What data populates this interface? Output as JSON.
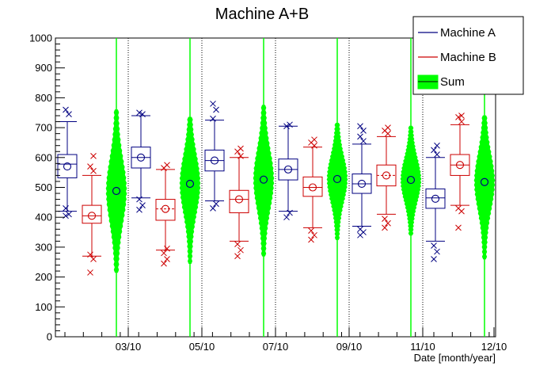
{
  "chart_data": {
    "type": "box",
    "title": "Machine A+B",
    "xlabel": "Date [month/year]",
    "ylabel": "",
    "ylim": [
      0,
      1000
    ],
    "y_ticks": [
      0,
      100,
      200,
      300,
      400,
      500,
      600,
      700,
      800,
      900,
      1000
    ],
    "x_ticks": [
      "03/10",
      "05/10",
      "07/10",
      "09/10",
      "11/10",
      "12/10"
    ],
    "legend": {
      "position": "top-right",
      "entries": [
        {
          "name": "Machine A",
          "color": "#000080",
          "style": "line"
        },
        {
          "name": "Machine B",
          "color": "#cc0000",
          "style": "line"
        },
        {
          "name": "Sum",
          "color": "#00ff00",
          "style": "fill"
        }
      ]
    },
    "colors": {
      "machine_a": "#000080",
      "machine_b": "#cc0000",
      "sum": "#00ff00"
    },
    "periods": [
      {
        "machine_a": {
          "q1": 532,
          "median": 578,
          "q3": 610,
          "mean": 570,
          "whisker_low": 420,
          "whisker_high": 720,
          "outliers": [
            405,
            410,
            430,
            745,
            760
          ]
        },
        "machine_b": {
          "q1": 380,
          "median": 405,
          "q3": 440,
          "mean": 405,
          "whisker_low": 270,
          "whisker_high": 540,
          "outliers": [
            215,
            260,
            275,
            555,
            570,
            605
          ]
        },
        "sum": {
          "mean": 488,
          "low": 215,
          "high": 760
        }
      },
      {
        "machine_a": {
          "q1": 565,
          "median": 600,
          "q3": 635,
          "mean": 600,
          "whisker_low": 465,
          "whisker_high": 740,
          "outliers": [
            425,
            440,
            460,
            745,
            750
          ]
        },
        "machine_b": {
          "q1": 390,
          "median": 428,
          "q3": 460,
          "mean": 428,
          "whisker_low": 290,
          "whisker_high": 560,
          "outliers": [
            245,
            260,
            280,
            295,
            565,
            575
          ]
        },
        "sum": {
          "mean": 512,
          "low": 245,
          "high": 735
        }
      },
      {
        "machine_a": {
          "q1": 555,
          "median": 590,
          "q3": 625,
          "mean": 590,
          "whisker_low": 455,
          "whisker_high": 725,
          "outliers": [
            430,
            445,
            730,
            760,
            780
          ]
        },
        "machine_b": {
          "q1": 415,
          "median": 460,
          "q3": 490,
          "mean": 460,
          "whisker_low": 320,
          "whisker_high": 600,
          "outliers": [
            270,
            290,
            310,
            605,
            620,
            630
          ]
        },
        "sum": {
          "mean": 526,
          "low": 270,
          "high": 775
        }
      },
      {
        "machine_a": {
          "q1": 525,
          "median": 560,
          "q3": 595,
          "mean": 560,
          "whisker_low": 420,
          "whisker_high": 705,
          "outliers": [
            400,
            415,
            705,
            710
          ]
        },
        "machine_b": {
          "q1": 470,
          "median": 500,
          "q3": 535,
          "mean": 500,
          "whisker_low": 365,
          "whisker_high": 635,
          "outliers": [
            325,
            340,
            355,
            640,
            650,
            660
          ]
        },
        "sum": {
          "mean": 528,
          "low": 325,
          "high": 715
        }
      },
      {
        "machine_a": {
          "q1": 480,
          "median": 512,
          "q3": 545,
          "mean": 512,
          "whisker_low": 370,
          "whisker_high": 645,
          "outliers": [
            340,
            350,
            360,
            655,
            670,
            690,
            705
          ]
        },
        "machine_b": {
          "q1": 505,
          "median": 540,
          "q3": 575,
          "mean": 540,
          "whisker_low": 410,
          "whisker_high": 670,
          "outliers": [
            365,
            380,
            395,
            680,
            690,
            700
          ]
        },
        "sum": {
          "mean": 525,
          "low": 340,
          "high": 705
        }
      },
      {
        "machine_a": {
          "q1": 430,
          "median": 465,
          "q3": 495,
          "mean": 462,
          "whisker_low": 320,
          "whisker_high": 600,
          "outliers": [
            260,
            285,
            305,
            610,
            625,
            640
          ]
        },
        "machine_b": {
          "q1": 540,
          "median": 575,
          "q3": 610,
          "mean": 575,
          "whisker_low": 440,
          "whisker_high": 710,
          "outliers": [
            365,
            420,
            430,
            720,
            735,
            740
          ]
        },
        "sum": {
          "mean": 518,
          "low": 260,
          "high": 740
        }
      }
    ]
  }
}
